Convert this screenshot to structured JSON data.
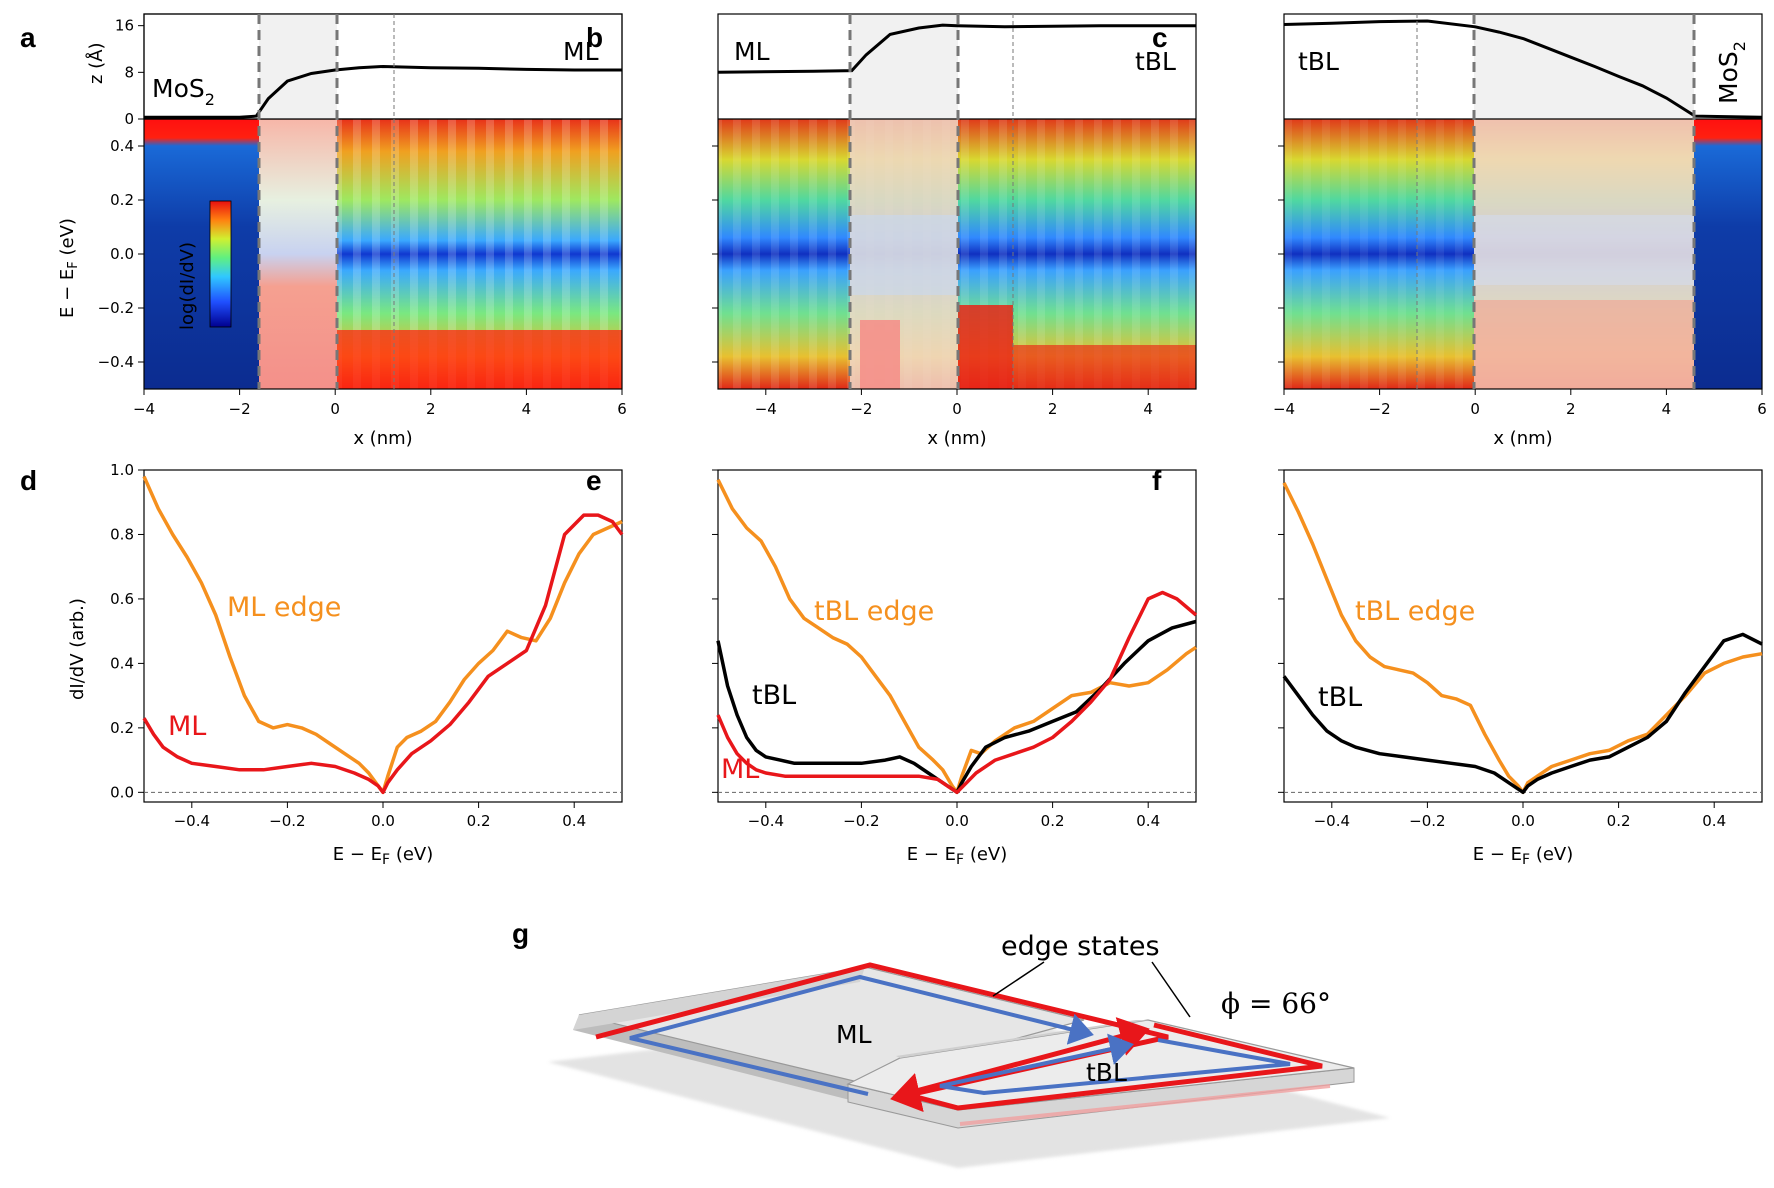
{
  "figure": {
    "panel_labels": [
      "a",
      "b",
      "c",
      "d",
      "e",
      "f",
      "g"
    ],
    "colors": {
      "red": "#e8161a",
      "orange": "#f5901e",
      "black": "#000000",
      "blue": "#4a72c4",
      "gray_dash": "#777777"
    }
  },
  "chart_data": [
    {
      "panel": "a",
      "type": "heatmap",
      "top_profile": {
        "ylabel": "z (Å)",
        "yticks": [
          "0",
          "8",
          "16"
        ],
        "ylim": [
          0,
          18
        ],
        "x": [
          -4,
          -2,
          -1.65,
          -1.4,
          -1,
          -0.5,
          0,
          0.5,
          1,
          2,
          3,
          4,
          5,
          6
        ],
        "z": [
          0.3,
          0.3,
          0.5,
          3.5,
          6.5,
          7.8,
          8.4,
          8.8,
          9.0,
          8.8,
          8.7,
          8.5,
          8.4,
          8.4
        ]
      },
      "region_labels": {
        "left": "MoS",
        "left_sub": "2",
        "right": "ML"
      },
      "colorbar_label": "log(dI/dV)",
      "xlabel": "x (nm)",
      "ylabel_main": "E − E",
      "ylabel_sub": "F",
      "ylabel_unit": " (eV)",
      "xlim": [
        -4,
        6
      ],
      "xticks": [
        "−4",
        "−2",
        "0",
        "2",
        "4",
        "6"
      ],
      "ylim": [
        -0.5,
        0.5
      ],
      "yticks": [
        "−0.4",
        "−0.2",
        "0.0",
        "0.2",
        "0.4"
      ],
      "edge_region": [
        -1.65,
        0
      ],
      "thin_line": 1.2
    },
    {
      "panel": "b",
      "type": "heatmap",
      "top_profile": {
        "ylim": [
          0,
          18
        ],
        "x": [
          -5,
          -3,
          -2.2,
          -1.9,
          -1.4,
          -0.8,
          -0.3,
          0,
          1,
          2,
          3,
          4,
          5
        ],
        "z": [
          8.0,
          8.2,
          8.3,
          11,
          14.5,
          15.6,
          16.1,
          16.0,
          15.8,
          15.9,
          16.0,
          16.0,
          16.0
        ]
      },
      "region_labels": {
        "left": "ML",
        "right": "tBL"
      },
      "xlabel": "x (nm)",
      "xlim": [
        -5,
        5
      ],
      "xticks": [
        "−4",
        "−2",
        "0",
        "2",
        "4"
      ],
      "ylim": [
        -0.5,
        0.5
      ],
      "edge_region": [
        -2.2,
        0
      ],
      "thin_line": 1.15
    },
    {
      "panel": "c",
      "type": "heatmap",
      "top_profile": {
        "ylim": [
          0,
          18
        ],
        "x": [
          -4,
          -3,
          -2,
          -1,
          0,
          0.5,
          1,
          1.5,
          2,
          2.5,
          3,
          3.5,
          4,
          4.6,
          6
        ],
        "z": [
          16.2,
          16.4,
          16.7,
          16.8,
          15.8,
          14.9,
          13.8,
          12.2,
          10.6,
          9.0,
          7.3,
          5.7,
          3.6,
          0.5,
          0.3
        ]
      },
      "region_labels": {
        "left": "tBL",
        "right": "MoS",
        "right_sub": "2"
      },
      "xlabel": "x (nm)",
      "xlim": [
        -4,
        6
      ],
      "xticks": [
        "−4",
        "−2",
        "0",
        "2",
        "4",
        "6"
      ],
      "ylim": [
        -0.5,
        0.5
      ],
      "edge_region": [
        0,
        4.6
      ],
      "thin_line": -1.2
    },
    {
      "panel": "d",
      "type": "line",
      "xlabel_main": "E − E",
      "xlabel_sub": "F",
      "xlabel_unit": " (eV)",
      "ylabel": "dI/dV (arb.)",
      "xlim": [
        -0.5,
        0.5
      ],
      "ylim": [
        -0.03,
        1.0
      ],
      "xticks": [
        "−0.4",
        "−0.2",
        "0.0",
        "0.2",
        "0.4"
      ],
      "yticks": [
        "0.0",
        "0.2",
        "0.4",
        "0.6",
        "0.8",
        "1.0"
      ],
      "series": [
        {
          "name": "ML edge",
          "color": "#f5901e",
          "x": [
            -0.5,
            -0.47,
            -0.44,
            -0.41,
            -0.38,
            -0.35,
            -0.32,
            -0.29,
            -0.26,
            -0.23,
            -0.2,
            -0.17,
            -0.14,
            -0.11,
            -0.08,
            -0.05,
            -0.03,
            -0.01,
            0.0,
            0.01,
            0.03,
            0.05,
            0.08,
            0.11,
            0.14,
            0.17,
            0.2,
            0.23,
            0.26,
            0.29,
            0.32,
            0.35,
            0.38,
            0.41,
            0.44,
            0.47,
            0.5
          ],
          "y": [
            0.98,
            0.88,
            0.8,
            0.73,
            0.65,
            0.55,
            0.42,
            0.3,
            0.22,
            0.2,
            0.21,
            0.2,
            0.18,
            0.15,
            0.12,
            0.09,
            0.06,
            0.02,
            0.0,
            0.05,
            0.14,
            0.17,
            0.19,
            0.22,
            0.28,
            0.35,
            0.4,
            0.44,
            0.5,
            0.48,
            0.47,
            0.54,
            0.65,
            0.74,
            0.8,
            0.82,
            0.84
          ]
        },
        {
          "name": "ML",
          "color": "#e8161a",
          "x": [
            -0.5,
            -0.48,
            -0.46,
            -0.43,
            -0.4,
            -0.35,
            -0.3,
            -0.25,
            -0.2,
            -0.15,
            -0.1,
            -0.06,
            -0.03,
            -0.01,
            0.0,
            0.01,
            0.03,
            0.06,
            0.1,
            0.14,
            0.18,
            0.22,
            0.26,
            0.3,
            0.34,
            0.38,
            0.42,
            0.45,
            0.48,
            0.5
          ],
          "y": [
            0.23,
            0.18,
            0.14,
            0.11,
            0.09,
            0.08,
            0.07,
            0.07,
            0.08,
            0.09,
            0.08,
            0.06,
            0.04,
            0.02,
            0.0,
            0.03,
            0.07,
            0.12,
            0.16,
            0.21,
            0.28,
            0.36,
            0.4,
            0.44,
            0.58,
            0.8,
            0.86,
            0.86,
            0.84,
            0.8
          ]
        }
      ],
      "labels": [
        "ML edge",
        "ML"
      ]
    },
    {
      "panel": "e",
      "type": "line",
      "xlabel_main": "E − E",
      "xlabel_sub": "F",
      "xlabel_unit": " (eV)",
      "xlim": [
        -0.5,
        0.5
      ],
      "ylim": [
        -0.03,
        1.0
      ],
      "xticks": [
        "−0.4",
        "−0.2",
        "0.0",
        "0.2",
        "0.4"
      ],
      "series": [
        {
          "name": "tBL edge",
          "color": "#f5901e",
          "x": [
            -0.5,
            -0.47,
            -0.44,
            -0.41,
            -0.38,
            -0.35,
            -0.32,
            -0.29,
            -0.26,
            -0.23,
            -0.2,
            -0.17,
            -0.14,
            -0.11,
            -0.08,
            -0.05,
            -0.03,
            -0.01,
            0.0,
            0.01,
            0.03,
            0.05,
            0.08,
            0.12,
            0.16,
            0.2,
            0.24,
            0.28,
            0.32,
            0.36,
            0.4,
            0.44,
            0.48,
            0.5
          ],
          "y": [
            0.97,
            0.88,
            0.82,
            0.78,
            0.7,
            0.6,
            0.54,
            0.51,
            0.48,
            0.46,
            0.42,
            0.36,
            0.3,
            0.22,
            0.14,
            0.1,
            0.07,
            0.02,
            0.0,
            0.05,
            0.13,
            0.12,
            0.16,
            0.2,
            0.22,
            0.26,
            0.3,
            0.31,
            0.34,
            0.33,
            0.34,
            0.38,
            0.43,
            0.45
          ]
        },
        {
          "name": "tBL",
          "color": "#000000",
          "x": [
            -0.5,
            -0.48,
            -0.46,
            -0.44,
            -0.42,
            -0.4,
            -0.37,
            -0.34,
            -0.3,
            -0.25,
            -0.2,
            -0.15,
            -0.12,
            -0.09,
            -0.06,
            -0.03,
            -0.01,
            0.0,
            0.01,
            0.03,
            0.06,
            0.1,
            0.15,
            0.2,
            0.25,
            0.3,
            0.35,
            0.4,
            0.45,
            0.5
          ],
          "y": [
            0.47,
            0.33,
            0.24,
            0.17,
            0.13,
            0.11,
            0.1,
            0.09,
            0.09,
            0.09,
            0.09,
            0.1,
            0.11,
            0.09,
            0.06,
            0.03,
            0.01,
            0.0,
            0.03,
            0.08,
            0.14,
            0.17,
            0.19,
            0.22,
            0.25,
            0.32,
            0.4,
            0.47,
            0.51,
            0.53
          ]
        },
        {
          "name": "ML",
          "color": "#e8161a",
          "x": [
            -0.5,
            -0.48,
            -0.46,
            -0.44,
            -0.42,
            -0.4,
            -0.36,
            -0.3,
            -0.24,
            -0.18,
            -0.12,
            -0.08,
            -0.04,
            -0.02,
            0.0,
            0.02,
            0.04,
            0.08,
            0.12,
            0.16,
            0.2,
            0.24,
            0.28,
            0.32,
            0.36,
            0.4,
            0.43,
            0.46,
            0.5
          ],
          "y": [
            0.24,
            0.17,
            0.12,
            0.09,
            0.07,
            0.06,
            0.05,
            0.05,
            0.05,
            0.05,
            0.05,
            0.05,
            0.04,
            0.02,
            0.0,
            0.03,
            0.06,
            0.1,
            0.12,
            0.14,
            0.17,
            0.22,
            0.28,
            0.35,
            0.48,
            0.6,
            0.62,
            0.6,
            0.55
          ]
        }
      ],
      "labels": [
        "tBL edge",
        "tBL",
        "ML"
      ]
    },
    {
      "panel": "f",
      "type": "line",
      "xlabel_main": "E − E",
      "xlabel_sub": "F",
      "xlabel_unit": " (eV)",
      "xlim": [
        -0.5,
        0.5
      ],
      "ylim": [
        -0.03,
        1.0
      ],
      "xticks": [
        "−0.4",
        "−0.2",
        "0.0",
        "0.2",
        "0.4"
      ],
      "series": [
        {
          "name": "tBL edge",
          "color": "#f5901e",
          "x": [
            -0.5,
            -0.47,
            -0.44,
            -0.41,
            -0.38,
            -0.35,
            -0.32,
            -0.29,
            -0.26,
            -0.23,
            -0.2,
            -0.17,
            -0.14,
            -0.11,
            -0.08,
            -0.05,
            -0.03,
            -0.01,
            0.0,
            0.01,
            0.03,
            0.06,
            0.1,
            0.14,
            0.18,
            0.22,
            0.26,
            0.3,
            0.34,
            0.38,
            0.42,
            0.46,
            0.5
          ],
          "y": [
            0.96,
            0.87,
            0.77,
            0.66,
            0.55,
            0.47,
            0.42,
            0.39,
            0.38,
            0.37,
            0.34,
            0.3,
            0.29,
            0.27,
            0.18,
            0.1,
            0.05,
            0.02,
            0.0,
            0.03,
            0.05,
            0.08,
            0.1,
            0.12,
            0.13,
            0.16,
            0.18,
            0.24,
            0.3,
            0.37,
            0.4,
            0.42,
            0.43
          ]
        },
        {
          "name": "tBL",
          "color": "#000000",
          "x": [
            -0.5,
            -0.47,
            -0.44,
            -0.41,
            -0.38,
            -0.35,
            -0.3,
            -0.25,
            -0.2,
            -0.15,
            -0.1,
            -0.06,
            -0.03,
            -0.01,
            0.0,
            0.01,
            0.03,
            0.06,
            0.1,
            0.14,
            0.18,
            0.22,
            0.26,
            0.3,
            0.34,
            0.38,
            0.42,
            0.46,
            0.5
          ],
          "y": [
            0.36,
            0.3,
            0.24,
            0.19,
            0.16,
            0.14,
            0.12,
            0.11,
            0.1,
            0.09,
            0.08,
            0.06,
            0.03,
            0.01,
            0.0,
            0.02,
            0.04,
            0.06,
            0.08,
            0.1,
            0.11,
            0.14,
            0.17,
            0.22,
            0.31,
            0.39,
            0.47,
            0.49,
            0.46
          ]
        }
      ],
      "labels": [
        "tBL edge",
        "tBL"
      ]
    },
    {
      "panel": "g",
      "type": "schematic",
      "labels": {
        "ml": "ML",
        "tbl": "tBL",
        "edge_states": "edge states",
        "phi": "ϕ = 66°"
      }
    }
  ]
}
